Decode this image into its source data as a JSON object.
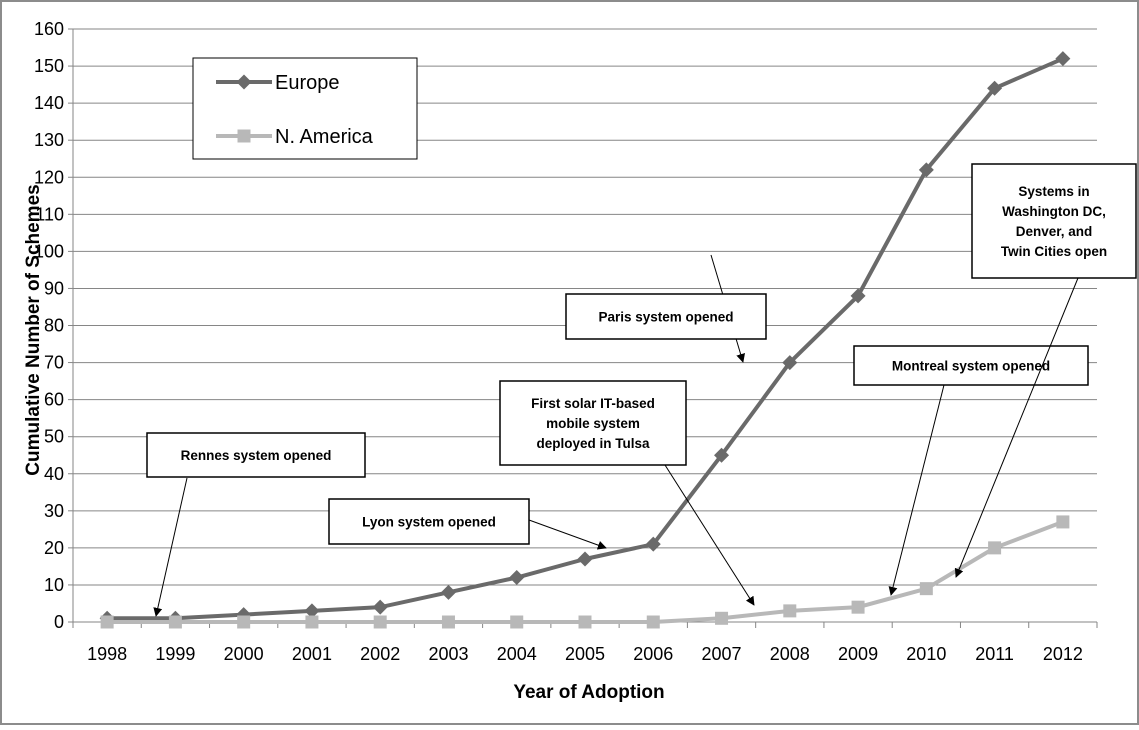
{
  "chart_data": {
    "type": "line",
    "title": "",
    "xlabel": "Year of Adoption",
    "ylabel": "Cumulative Number of Schemes",
    "ylim": [
      0,
      160
    ],
    "yticks": [
      "0",
      "10",
      "20",
      "30",
      "40",
      "50",
      "60",
      "70",
      "80",
      "90",
      "100",
      "110",
      "120",
      "130",
      "140",
      "150",
      "160"
    ],
    "categories": [
      "1998",
      "1999",
      "2000",
      "2001",
      "2002",
      "2003",
      "2004",
      "2005",
      "2006",
      "2007",
      "2008",
      "2009",
      "2010",
      "2011",
      "2012"
    ],
    "grid": true,
    "legend_position": "top-left",
    "series": [
      {
        "name": "Europe",
        "color": "#6a6a6a",
        "marker": "diamond",
        "values": [
          1,
          1,
          2,
          3,
          4,
          8,
          12,
          17,
          21,
          45,
          70,
          88,
          122,
          144,
          152
        ]
      },
      {
        "name": "N. America",
        "color": "#b8b8b8",
        "marker": "square",
        "values": [
          0,
          0,
          0,
          0,
          0,
          0,
          0,
          0,
          0,
          1,
          3,
          4,
          9,
          20,
          27
        ]
      }
    ],
    "annotations": [
      {
        "id": "rennes",
        "lines": [
          "Rennes system opened"
        ],
        "target_series": 0,
        "target_index": 0
      },
      {
        "id": "lyon",
        "lines": [
          "Lyon system opened"
        ],
        "target_series": 0,
        "target_index": 7
      },
      {
        "id": "tulsa",
        "lines": [
          "First solar IT-based",
          "mobile system",
          "deployed in Tulsa"
        ],
        "target_series": 1,
        "target_index": 10
      },
      {
        "id": "paris",
        "lines": [
          "Paris system opened"
        ],
        "target_series": 0,
        "target_index": 9
      },
      {
        "id": "montreal",
        "lines": [
          "Montreal system opened"
        ],
        "target_series": 1,
        "target_index": 12
      },
      {
        "id": "us-cities",
        "lines": [
          "Systems in",
          "Washington DC,",
          "Denver, and",
          "Twin Cities open"
        ],
        "target_series": 1,
        "target_index": 13
      }
    ]
  }
}
